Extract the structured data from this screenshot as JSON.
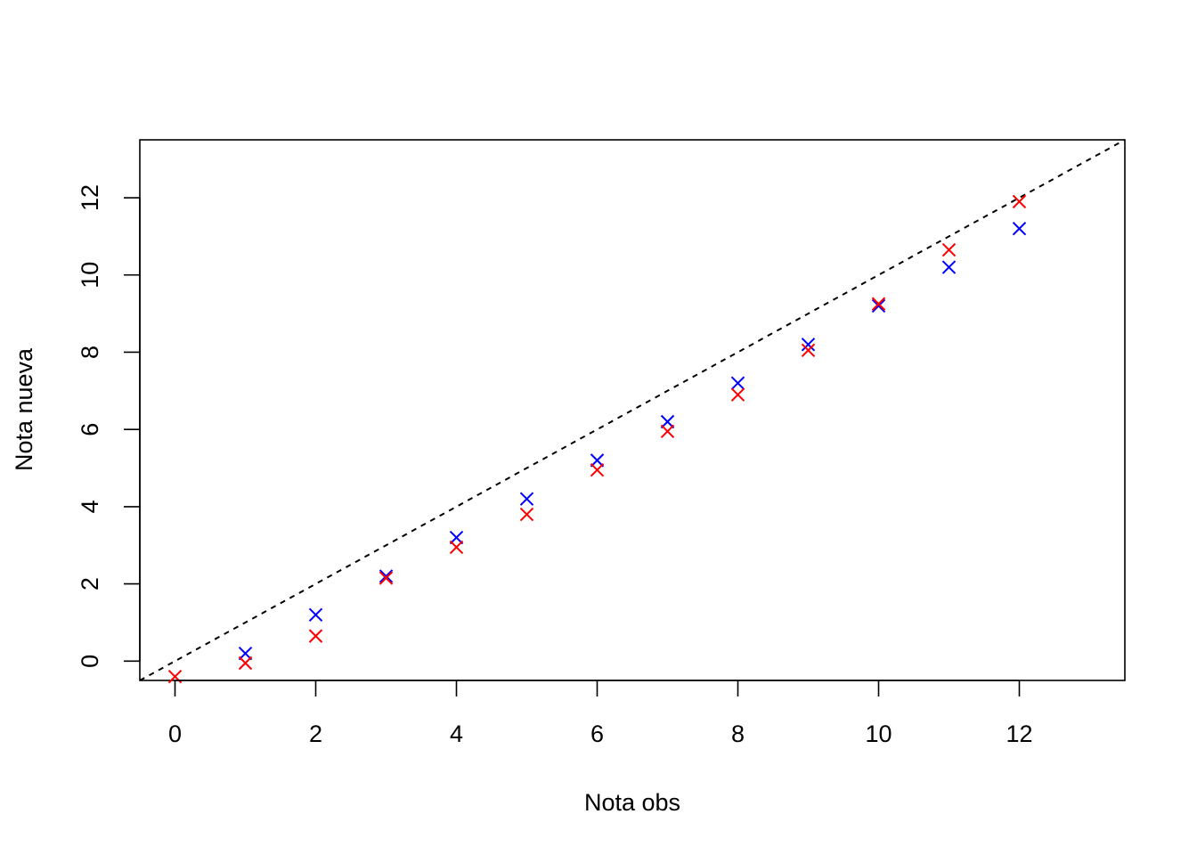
{
  "chart_data": {
    "type": "scatter",
    "title": "",
    "xlabel": "Nota obs",
    "ylabel": "Nota nueva",
    "xlim": [
      -0.5,
      13.5
    ],
    "ylim": [
      -0.5,
      13.5
    ],
    "xticks": [
      0,
      2,
      4,
      6,
      8,
      10,
      12
    ],
    "yticks": [
      0,
      2,
      4,
      6,
      8,
      10,
      12
    ],
    "grid": false,
    "marker": "x",
    "reference_line": {
      "slope": 1,
      "intercept": 0,
      "style": "dashed",
      "color": "#000000"
    },
    "series": [
      {
        "color": "#0000ff",
        "x": [
          1,
          2,
          3,
          4,
          5,
          6,
          7,
          8,
          9,
          10,
          11,
          12
        ],
        "y": [
          0.2,
          1.2,
          2.2,
          3.2,
          4.2,
          5.2,
          6.2,
          7.2,
          8.2,
          9.2,
          10.2,
          11.2
        ]
      },
      {
        "color": "#ff0000",
        "x": [
          0,
          1,
          2,
          3,
          4,
          5,
          6,
          7,
          8,
          9,
          10,
          11,
          12
        ],
        "y": [
          -0.4,
          -0.05,
          0.65,
          2.15,
          2.95,
          3.8,
          4.95,
          5.95,
          6.9,
          8.05,
          9.25,
          10.65,
          11.9
        ]
      }
    ]
  }
}
